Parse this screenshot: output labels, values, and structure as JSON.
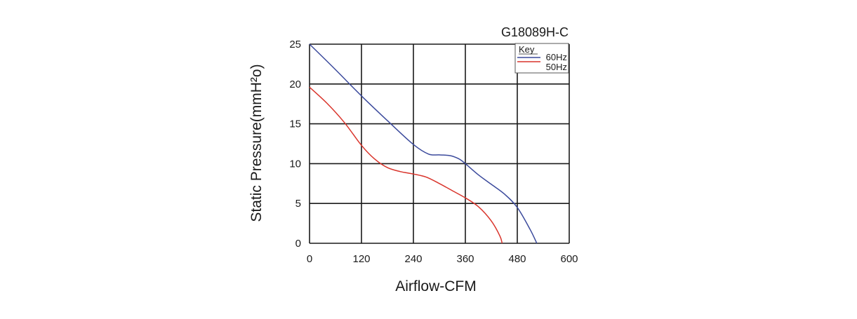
{
  "chart_data": {
    "type": "line",
    "title": "G18089H-C",
    "xlabel": "Airflow-CFM",
    "ylabel": "Static Pressure(mmH²o)",
    "xlim": [
      0,
      600
    ],
    "ylim": [
      0,
      25
    ],
    "x_ticks": [
      0,
      120,
      240,
      360,
      480,
      600
    ],
    "y_ticks": [
      0,
      5,
      10,
      15,
      20,
      25
    ],
    "x_tick_labels": [
      "0",
      "120",
      "240",
      "360",
      "480",
      "600"
    ],
    "y_tick_labels": [
      "0",
      "5",
      "10",
      "15",
      "20",
      "25"
    ],
    "grid": true,
    "legend": {
      "title": "Key",
      "placement": "top-right"
    },
    "series": [
      {
        "name": "60Hz",
        "color": "#3b4a9c",
        "points": [
          [
            0,
            25
          ],
          [
            60,
            21.8
          ],
          [
            120,
            18.5
          ],
          [
            180,
            15.4
          ],
          [
            240,
            12.4
          ],
          [
            275,
            11.2
          ],
          [
            300,
            11.1
          ],
          [
            325,
            11.0
          ],
          [
            345,
            10.6
          ],
          [
            360,
            10.0
          ],
          [
            390,
            8.6
          ],
          [
            420,
            7.4
          ],
          [
            450,
            6.2
          ],
          [
            480,
            4.5
          ],
          [
            510,
            1.7
          ],
          [
            525,
            0
          ]
        ]
      },
      {
        "name": "50Hz",
        "color": "#d9342b",
        "points": [
          [
            0,
            19.6
          ],
          [
            40,
            17.6
          ],
          [
            80,
            15.2
          ],
          [
            120,
            12.3
          ],
          [
            150,
            10.6
          ],
          [
            180,
            9.5
          ],
          [
            210,
            9.0
          ],
          [
            240,
            8.7
          ],
          [
            270,
            8.3
          ],
          [
            300,
            7.5
          ],
          [
            330,
            6.6
          ],
          [
            360,
            5.7
          ],
          [
            390,
            4.6
          ],
          [
            420,
            2.8
          ],
          [
            440,
            0.9
          ],
          [
            445,
            0
          ]
        ]
      }
    ]
  }
}
